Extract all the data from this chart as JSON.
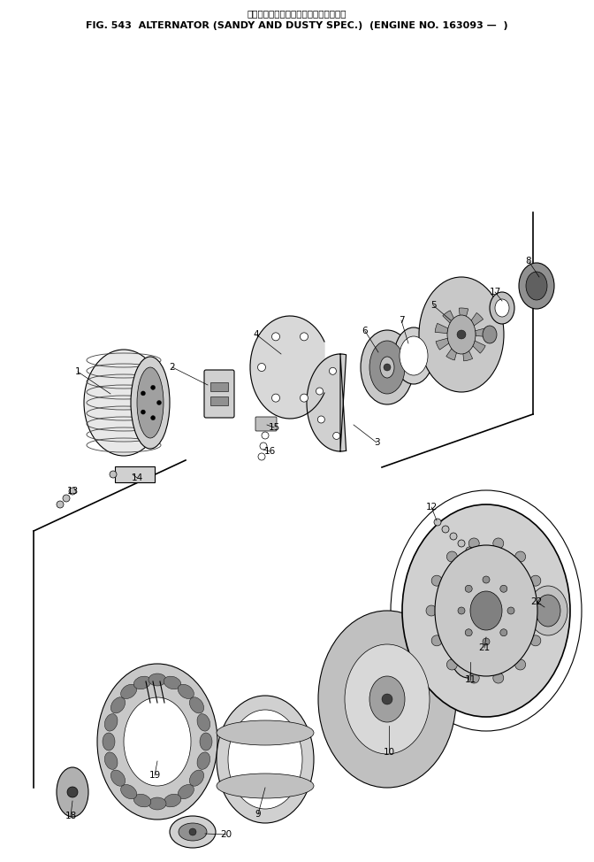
{
  "title_line1": "オルタネータ　砂塵地仕様　　適用号機",
  "title_line2": "FIG. 543  ALTERNATOR (SANDY AND DUSTY SPEC.)  (ENGINE NO. 163093 —  )",
  "bg_color": "#ffffff",
  "fig_width": 6.72,
  "fig_height": 9.74
}
